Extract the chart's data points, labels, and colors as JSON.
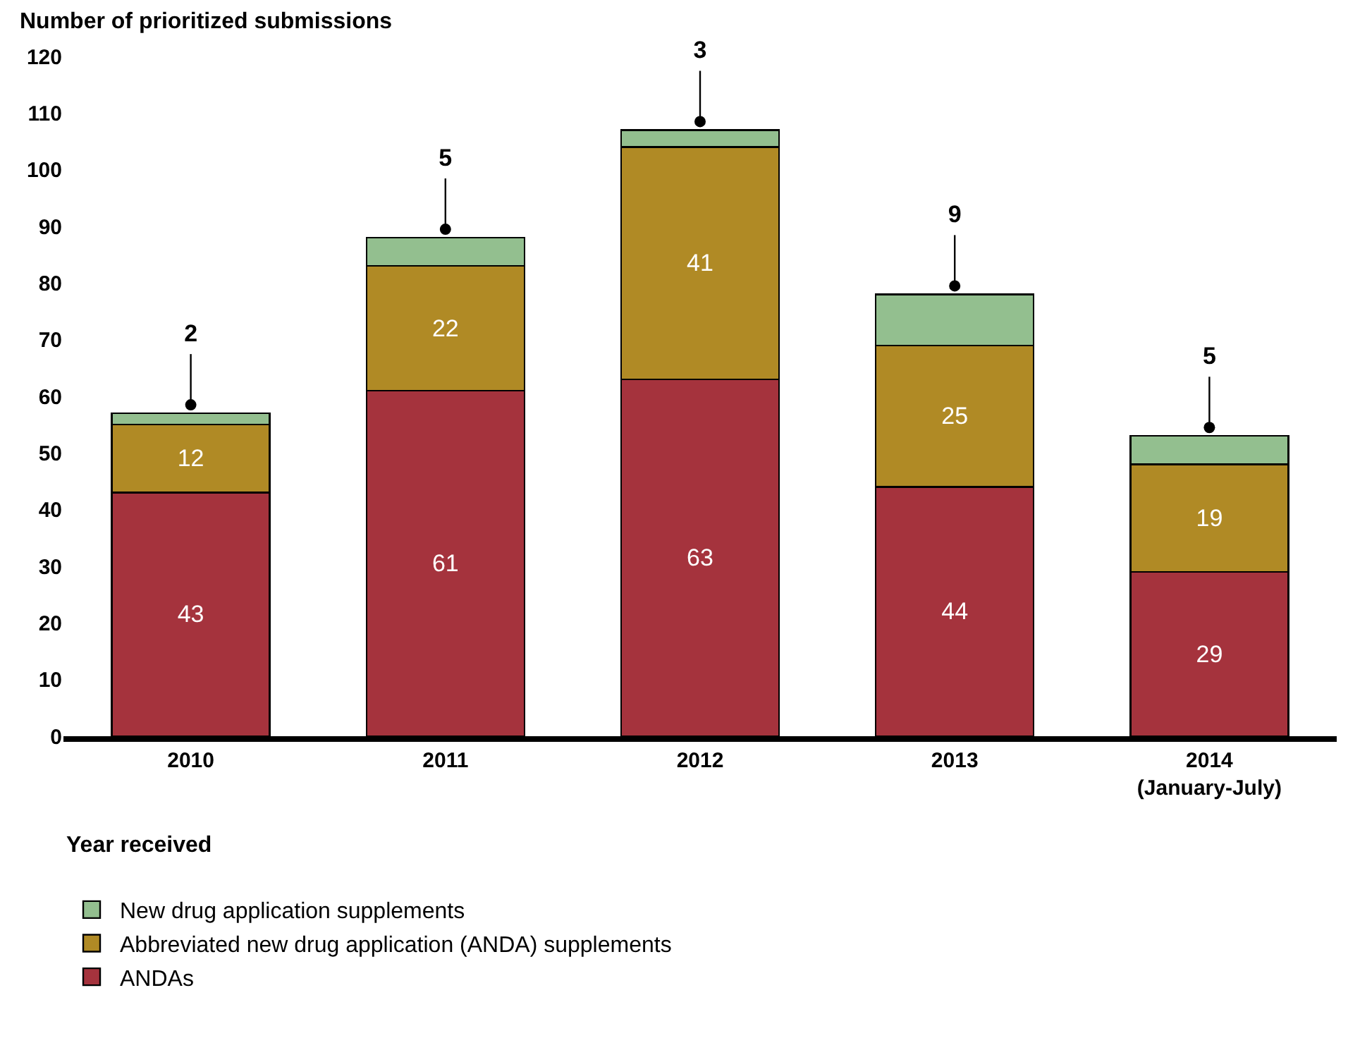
{
  "chart_data": {
    "type": "bar",
    "stacked": true,
    "ylabel": "Number of prioritized submissions",
    "xlabel": "Year received",
    "categories": [
      "2010",
      "2011",
      "2012",
      "2013",
      "2014\n(January-July)"
    ],
    "series": [
      {
        "name": "ANDAs",
        "color": "#a5333d",
        "values": [
          43,
          61,
          63,
          44,
          29
        ]
      },
      {
        "name": "Abbreviated new drug application (ANDA) supplements",
        "color": "#b08a25",
        "values": [
          12,
          22,
          41,
          25,
          19
        ]
      },
      {
        "name": "New drug application supplements",
        "color": "#93bf8f",
        "values": [
          2,
          5,
          3,
          9,
          5
        ]
      }
    ],
    "ylim": [
      0,
      120
    ],
    "yticks": [
      0,
      10,
      20,
      30,
      40,
      50,
      60,
      70,
      80,
      90,
      100,
      110,
      120
    ],
    "data_labels": true,
    "legend": "bottom"
  }
}
